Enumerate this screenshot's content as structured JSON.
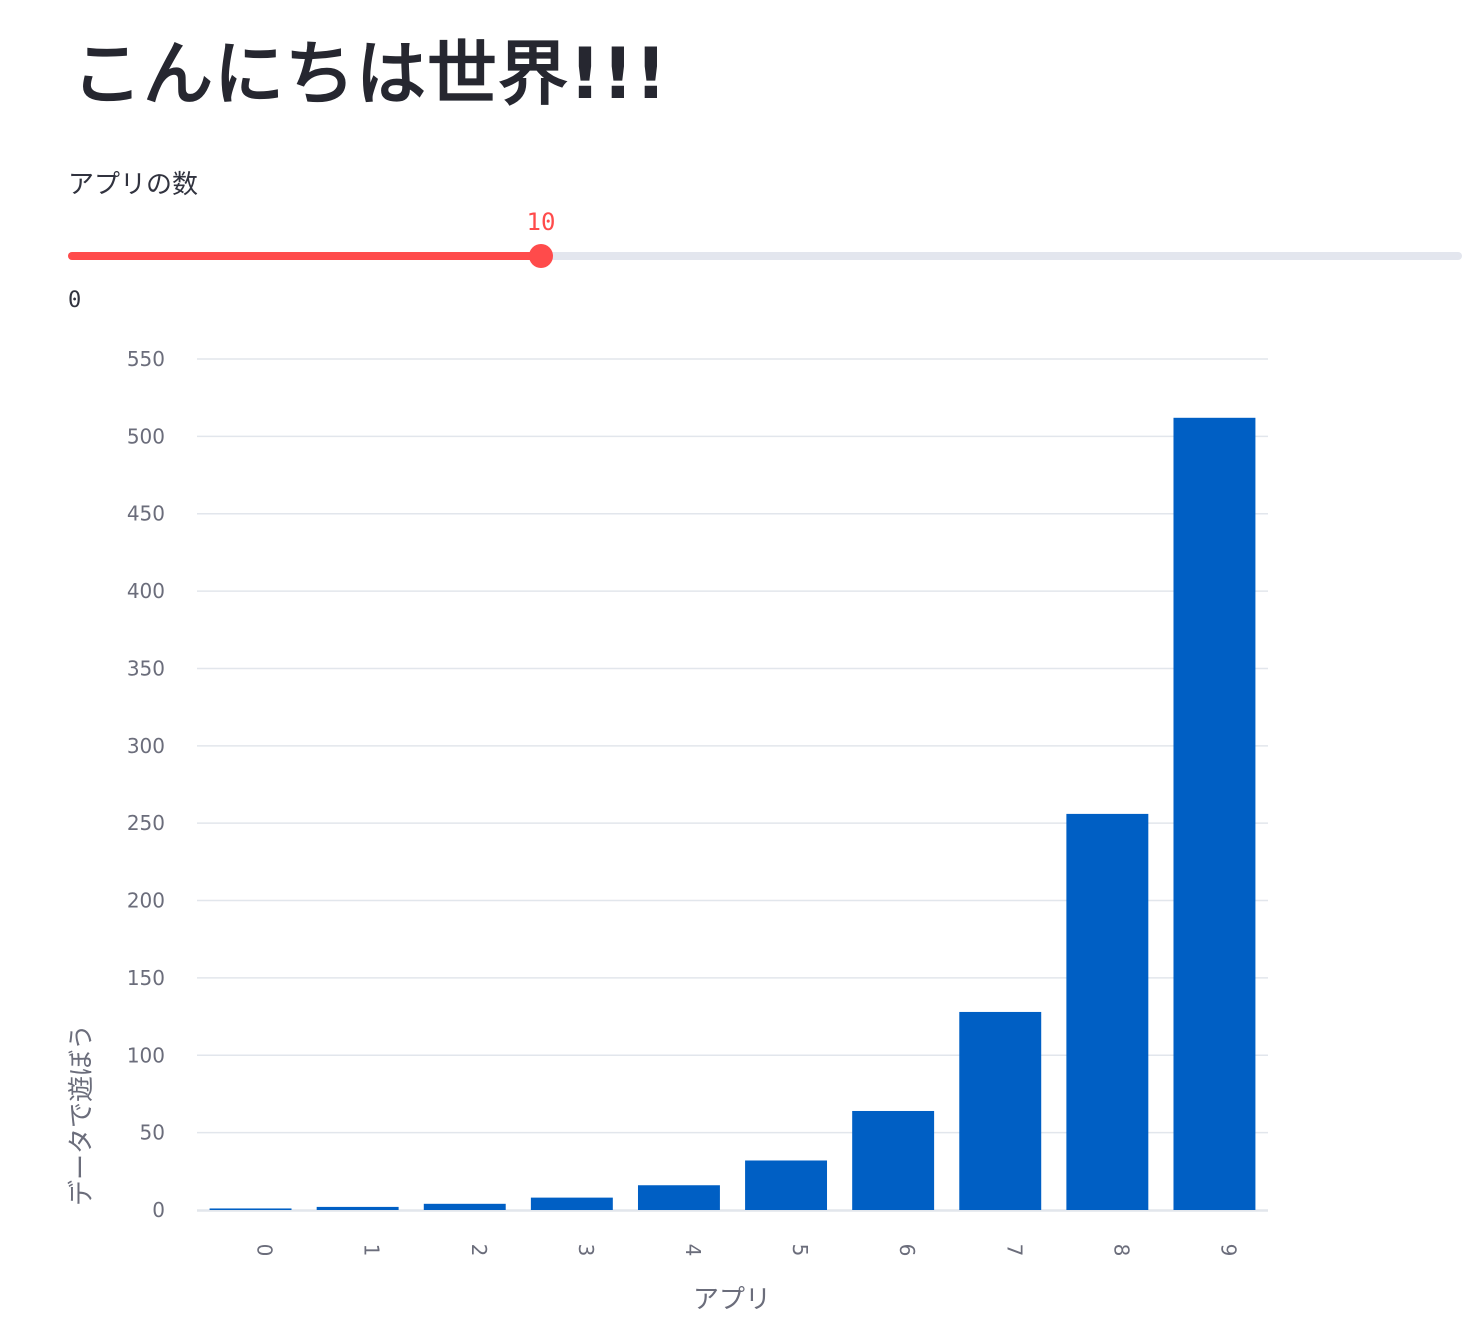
{
  "header": {
    "title": "こんにちは世界!!!"
  },
  "slider": {
    "label": "アプリの数",
    "value": "10",
    "min_label": "0",
    "progress": 0.34,
    "fill_color": "#ff4b4b",
    "track_color": "#e3e6ee"
  },
  "chart_data": {
    "type": "bar",
    "categories": [
      "0",
      "1",
      "2",
      "3",
      "4",
      "5",
      "6",
      "7",
      "8",
      "9"
    ],
    "values": [
      1,
      2,
      4,
      8,
      16,
      32,
      64,
      128,
      256,
      512
    ],
    "xlabel": "アプリ",
    "ylabel": "データで遊ぼう",
    "ylim": [
      0,
      550
    ],
    "yticks": [
      0,
      50,
      100,
      150,
      200,
      250,
      300,
      350,
      400,
      450,
      500,
      550
    ],
    "xtick_rotation": 90,
    "bar_color": "#005fc4",
    "grid": true
  }
}
